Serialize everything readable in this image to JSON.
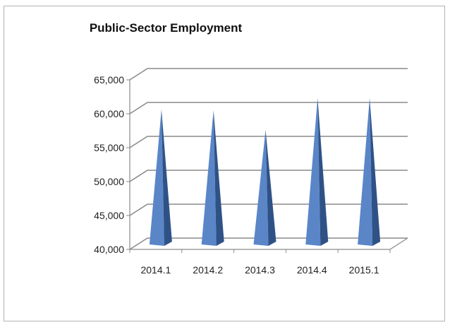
{
  "chart_data": {
    "type": "bar",
    "title": "Public-Sector Employment",
    "xlabel": "",
    "ylabel": "",
    "categories": [
      "2014.1",
      "2014.2",
      "2014.3",
      "2014.4",
      "2015.1"
    ],
    "values": [
      59800,
      59700,
      56800,
      61500,
      61500
    ],
    "ylim": [
      40000,
      65000
    ],
    "yticks": [
      40000,
      45000,
      50000,
      55000,
      60000,
      65000
    ],
    "ytick_labels": [
      "40,000",
      "45,000",
      "50,000",
      "55,000",
      "60,000",
      "65,000"
    ],
    "grid": true,
    "legend": "none",
    "shape": "3d-cone",
    "colors": {
      "bar_front": "#5a86c8",
      "bar_side": "#2f5286",
      "grid": "#8a8a8a"
    }
  }
}
